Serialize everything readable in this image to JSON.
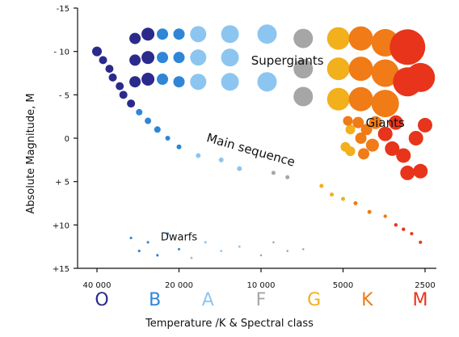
{
  "chart_data": {
    "type": "scatter",
    "title": "",
    "xlabel": "Temperature /K & Spectral class",
    "ylabel": "Absolute Magnitude, M",
    "xlim": [
      40000,
      2500
    ],
    "ylim": [
      15,
      -15
    ],
    "grid": false,
    "legend": "none",
    "x_ticks": [
      {
        "value": 40000,
        "label": "40 000"
      },
      {
        "value": 20000,
        "label": "20 000"
      },
      {
        "value": 10000,
        "label": "10 000"
      },
      {
        "value": 5000,
        "label": "5000"
      },
      {
        "value": 2500,
        "label": "2500"
      }
    ],
    "y_ticks": [
      {
        "value": -15,
        "label": "-15"
      },
      {
        "value": -10,
        "label": "- 10"
      },
      {
        "value": -5,
        "label": "- 5"
      },
      {
        "value": 0,
        "label": "0"
      },
      {
        "value": 5,
        "label": "+ 5"
      },
      {
        "value": 10,
        "label": "+10"
      },
      {
        "value": 15,
        "label": "+15"
      }
    ],
    "spectral_classes": [
      {
        "letter": "O",
        "color": "#2b2a8c"
      },
      {
        "letter": "B",
        "color": "#2f86d6"
      },
      {
        "letter": "A",
        "color": "#8cc6f0"
      },
      {
        "letter": "F",
        "color": "#a6a6a6"
      },
      {
        "letter": "G",
        "color": "#f2b01c"
      },
      {
        "letter": "K",
        "color": "#f07b17"
      },
      {
        "letter": "M",
        "color": "#e8341b"
      }
    ],
    "region_labels": [
      {
        "text": "Supergiants",
        "x": 8000,
        "y": -8.5
      },
      {
        "text": "Giants",
        "x": 3500,
        "y": -1.3
      },
      {
        "text": "Main sequence",
        "x": 11000,
        "y": 1.8
      },
      {
        "text": "Dwarfs",
        "x": 20000,
        "y": 11.8
      }
    ],
    "groups": [
      {
        "name": "supergiants",
        "stars": [
          {
            "x": 29000,
            "y": -11.5,
            "class": "O",
            "r": 7
          },
          {
            "x": 29000,
            "y": -9.0,
            "class": "O",
            "r": 7
          },
          {
            "x": 29000,
            "y": -6.5,
            "class": "O",
            "r": 7
          },
          {
            "x": 26000,
            "y": -12.0,
            "class": "O",
            "r": 8
          },
          {
            "x": 26000,
            "y": -9.3,
            "class": "O",
            "r": 8
          },
          {
            "x": 26000,
            "y": -6.8,
            "class": "O",
            "r": 8
          },
          {
            "x": 23000,
            "y": -12.0,
            "class": "B",
            "r": 7
          },
          {
            "x": 23000,
            "y": -9.3,
            "class": "B",
            "r": 7
          },
          {
            "x": 23000,
            "y": -6.8,
            "class": "B",
            "r": 7
          },
          {
            "x": 20000,
            "y": -12.0,
            "class": "B",
            "r": 7
          },
          {
            "x": 20000,
            "y": -9.3,
            "class": "B",
            "r": 7
          },
          {
            "x": 20000,
            "y": -6.5,
            "class": "B",
            "r": 7
          },
          {
            "x": 17000,
            "y": -12.0,
            "class": "A",
            "r": 10
          },
          {
            "x": 17000,
            "y": -9.3,
            "class": "A",
            "r": 10
          },
          {
            "x": 17000,
            "y": -6.5,
            "class": "A",
            "r": 10
          },
          {
            "x": 13000,
            "y": -12.0,
            "class": "A",
            "r": 11
          },
          {
            "x": 13000,
            "y": -9.3,
            "class": "A",
            "r": 11
          },
          {
            "x": 13000,
            "y": -6.5,
            "class": "A",
            "r": 11
          },
          {
            "x": 9500,
            "y": -12.0,
            "class": "A",
            "r": 12
          },
          {
            "x": 9500,
            "y": -6.5,
            "class": "A",
            "r": 12
          },
          {
            "x": 7000,
            "y": -11.5,
            "class": "F",
            "r": 12
          },
          {
            "x": 7000,
            "y": -8.0,
            "class": "F",
            "r": 12
          },
          {
            "x": 7000,
            "y": -4.8,
            "class": "F",
            "r": 12
          },
          {
            "x": 5200,
            "y": -11.5,
            "class": "G",
            "r": 14
          },
          {
            "x": 5200,
            "y": -8.0,
            "class": "G",
            "r": 14
          },
          {
            "x": 5200,
            "y": -4.5,
            "class": "G",
            "r": 14
          },
          {
            "x": 4300,
            "y": -11.5,
            "class": "K",
            "r": 15
          },
          {
            "x": 4300,
            "y": -8.0,
            "class": "K",
            "r": 15
          },
          {
            "x": 4300,
            "y": -4.5,
            "class": "K",
            "r": 15
          },
          {
            "x": 3500,
            "y": -11.0,
            "class": "K",
            "r": 17
          },
          {
            "x": 3500,
            "y": -7.5,
            "class": "K",
            "r": 17
          },
          {
            "x": 3500,
            "y": -4.0,
            "class": "K",
            "r": 17
          },
          {
            "x": 2900,
            "y": -10.5,
            "class": "M",
            "r": 22
          },
          {
            "x": 2900,
            "y": -6.5,
            "class": "M",
            "r": 18
          },
          {
            "x": 2600,
            "y": -7.0,
            "class": "M",
            "r": 18
          }
        ]
      },
      {
        "name": "giants",
        "stars": [
          {
            "x": 4900,
            "y": 1.0,
            "class": "G",
            "r": 6
          },
          {
            "x": 4700,
            "y": -1.0,
            "class": "G",
            "r": 6
          },
          {
            "x": 4800,
            "y": -2.0,
            "class": "K",
            "r": 6
          },
          {
            "x": 4700,
            "y": 1.5,
            "class": "G",
            "r": 6
          },
          {
            "x": 4400,
            "y": -1.8,
            "class": "K",
            "r": 7
          },
          {
            "x": 4300,
            "y": 0.0,
            "class": "K",
            "r": 7
          },
          {
            "x": 4200,
            "y": 1.8,
            "class": "K",
            "r": 7
          },
          {
            "x": 4100,
            "y": -1.0,
            "class": "K",
            "r": 7
          },
          {
            "x": 3900,
            "y": 0.8,
            "class": "K",
            "r": 8
          },
          {
            "x": 3800,
            "y": -1.8,
            "class": "K",
            "r": 8
          },
          {
            "x": 3500,
            "y": -0.5,
            "class": "M",
            "r": 9
          },
          {
            "x": 3300,
            "y": 1.2,
            "class": "M",
            "r": 9
          },
          {
            "x": 3200,
            "y": -1.8,
            "class": "M",
            "r": 9
          },
          {
            "x": 3000,
            "y": 2.0,
            "class": "M",
            "r": 9
          },
          {
            "x": 2900,
            "y": 4.0,
            "class": "M",
            "r": 9
          },
          {
            "x": 2700,
            "y": 0.0,
            "class": "M",
            "r": 9
          },
          {
            "x": 2500,
            "y": -1.5,
            "class": "M",
            "r": 9
          },
          {
            "x": 2600,
            "y": 3.8,
            "class": "M",
            "r": 9
          }
        ]
      },
      {
        "name": "main-sequence",
        "stars": [
          {
            "x": 40000,
            "y": -10.0,
            "class": "O",
            "r": 6
          },
          {
            "x": 38000,
            "y": -9.0,
            "class": "O",
            "r": 5
          },
          {
            "x": 36000,
            "y": -8.0,
            "class": "O",
            "r": 5
          },
          {
            "x": 35000,
            "y": -7.0,
            "class": "O",
            "r": 5
          },
          {
            "x": 33000,
            "y": -6.0,
            "class": "O",
            "r": 5
          },
          {
            "x": 32000,
            "y": -5.0,
            "class": "O",
            "r": 5
          },
          {
            "x": 30000,
            "y": -4.0,
            "class": "O",
            "r": 5
          },
          {
            "x": 28000,
            "y": -3.0,
            "class": "B",
            "r": 4
          },
          {
            "x": 26000,
            "y": -2.0,
            "class": "B",
            "r": 4
          },
          {
            "x": 24000,
            "y": -1.0,
            "class": "B",
            "r": 4
          },
          {
            "x": 22000,
            "y": 0.0,
            "class": "B",
            "r": 3
          },
          {
            "x": 20000,
            "y": 1.0,
            "class": "B",
            "r": 3
          },
          {
            "x": 17000,
            "y": 2.0,
            "class": "A",
            "r": 3
          },
          {
            "x": 14000,
            "y": 2.5,
            "class": "A",
            "r": 3
          },
          {
            "x": 12000,
            "y": 3.5,
            "class": "A",
            "r": 3
          },
          {
            "x": 9000,
            "y": 4.0,
            "class": "F",
            "r": 2.5
          },
          {
            "x": 8000,
            "y": 4.5,
            "class": "F",
            "r": 2.5
          },
          {
            "x": 6000,
            "y": 5.5,
            "class": "G",
            "r": 2.5
          },
          {
            "x": 5500,
            "y": 6.5,
            "class": "G",
            "r": 2.5
          },
          {
            "x": 5000,
            "y": 7.0,
            "class": "G",
            "r": 2.5
          },
          {
            "x": 4500,
            "y": 7.5,
            "class": "K",
            "r": 2.5
          },
          {
            "x": 4000,
            "y": 8.5,
            "class": "K",
            "r": 2.5
          },
          {
            "x": 3500,
            "y": 9.0,
            "class": "K",
            "r": 2.2
          },
          {
            "x": 3200,
            "y": 10.0,
            "class": "M",
            "r": 2.2
          },
          {
            "x": 3000,
            "y": 10.5,
            "class": "M",
            "r": 2.2
          },
          {
            "x": 2800,
            "y": 11.0,
            "class": "M",
            "r": 2
          },
          {
            "x": 2600,
            "y": 12.0,
            "class": "M",
            "r": 2
          }
        ]
      },
      {
        "name": "dwarfs",
        "stars": [
          {
            "x": 30000,
            "y": 11.5,
            "class": "B",
            "r": 1.6
          },
          {
            "x": 28000,
            "y": 13.0,
            "class": "B",
            "r": 1.6
          },
          {
            "x": 26000,
            "y": 12.0,
            "class": "B",
            "r": 1.6
          },
          {
            "x": 24000,
            "y": 13.5,
            "class": "B",
            "r": 1.6
          },
          {
            "x": 22000,
            "y": 11.0,
            "class": "B",
            "r": 1.6
          },
          {
            "x": 20000,
            "y": 12.8,
            "class": "B",
            "r": 1.5
          },
          {
            "x": 18000,
            "y": 13.8,
            "class": "A",
            "r": 1.5
          },
          {
            "x": 16000,
            "y": 12.0,
            "class": "A",
            "r": 1.5
          },
          {
            "x": 14000,
            "y": 13.0,
            "class": "A",
            "r": 1.4
          },
          {
            "x": 12000,
            "y": 12.5,
            "class": "A",
            "r": 1.4
          },
          {
            "x": 10000,
            "y": 13.5,
            "class": "F",
            "r": 1.3
          },
          {
            "x": 9000,
            "y": 12.0,
            "class": "F",
            "r": 1.3
          },
          {
            "x": 8000,
            "y": 13.0,
            "class": "F",
            "r": 1.3
          },
          {
            "x": 7000,
            "y": 12.8,
            "class": "F",
            "r": 1.3
          }
        ]
      }
    ]
  }
}
